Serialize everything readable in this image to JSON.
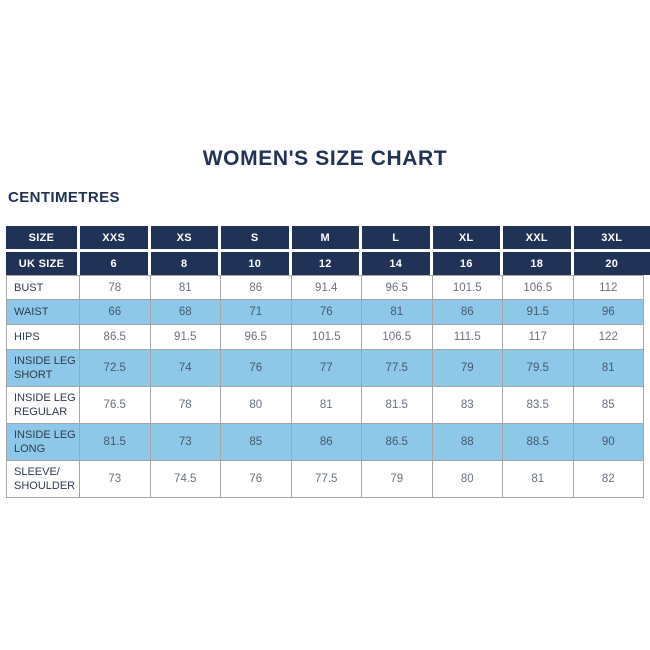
{
  "page": {
    "title": "WOMEN'S SIZE CHART",
    "unit_label": "CENTIMETRES"
  },
  "colors": {
    "navy": "#213257",
    "light_blue": "#8dc8e8",
    "border": "#a6a6a6"
  },
  "table": {
    "header_rows": [
      {
        "label": "SIZE",
        "values": [
          "XXS",
          "XS",
          "S",
          "M",
          "L",
          "XL",
          "XXL",
          "3XL"
        ]
      },
      {
        "label": "UK SIZE",
        "values": [
          "6",
          "8",
          "10",
          "12",
          "14",
          "16",
          "18",
          "20"
        ]
      }
    ],
    "rows": [
      {
        "label": "BUST",
        "highlight": false,
        "values": [
          "78",
          "81",
          "86",
          "91.4",
          "96.5",
          "101.5",
          "106.5",
          "112"
        ]
      },
      {
        "label": "WAIST",
        "highlight": true,
        "values": [
          "66",
          "68",
          "71",
          "76",
          "81",
          "86",
          "91.5",
          "96"
        ]
      },
      {
        "label": "HIPS",
        "highlight": false,
        "values": [
          "86.5",
          "91.5",
          "96.5",
          "101.5",
          "106.5",
          "111.5",
          "117",
          "122"
        ]
      },
      {
        "label": "INSIDE LEG\nSHORT",
        "highlight": true,
        "values": [
          "72.5",
          "74",
          "76",
          "77",
          "77.5",
          "79",
          "79.5",
          "81"
        ]
      },
      {
        "label": "INSIDE LEG\nREGULAR",
        "highlight": false,
        "values": [
          "76.5",
          "78",
          "80",
          "81",
          "81.5",
          "83",
          "83.5",
          "85"
        ]
      },
      {
        "label": "INSIDE LEG\nLONG",
        "highlight": true,
        "values": [
          "81.5",
          "73",
          "85",
          "86",
          "86.5",
          "88",
          "88.5",
          "90"
        ]
      },
      {
        "label": "SLEEVE/\nSHOULDER",
        "highlight": false,
        "values": [
          "73",
          "74.5",
          "76",
          "77.5",
          "79",
          "80",
          "81",
          "82"
        ]
      }
    ]
  }
}
